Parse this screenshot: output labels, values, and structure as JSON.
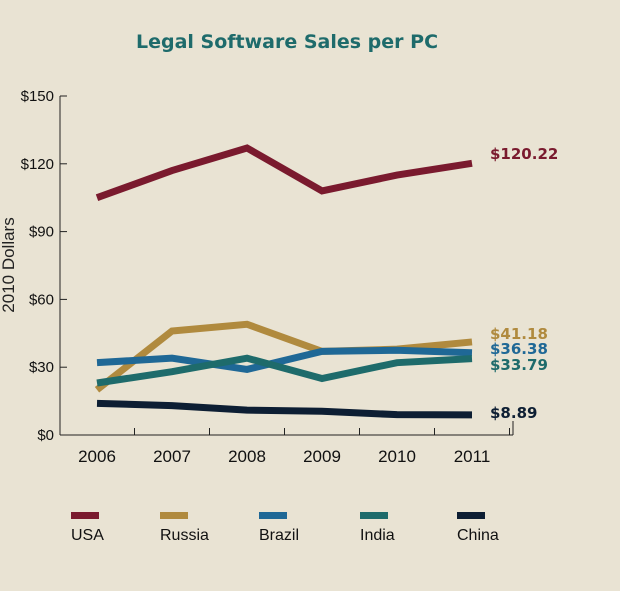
{
  "chart_data": {
    "type": "line",
    "title": "Legal Software Sales per PC",
    "ylabel": "2010 Dollars",
    "xlabel": "",
    "categories": [
      "2006",
      "2007",
      "2008",
      "2009",
      "2010",
      "2011"
    ],
    "ylim": [
      0,
      150
    ],
    "yticks": [
      0,
      30,
      60,
      90,
      120,
      150
    ],
    "ytick_labels": [
      "$0",
      "$30",
      "$60",
      "$90",
      "$120",
      "$150"
    ],
    "legend_position": "bottom",
    "series": [
      {
        "name": "USA",
        "color": "#7a1a2e",
        "values": [
          105,
          117,
          127,
          108,
          115,
          120.22
        ],
        "end_label": "$120.22"
      },
      {
        "name": "Russia",
        "color": "#b08a3e",
        "values": [
          20,
          46,
          49,
          37,
          38,
          41.18
        ],
        "end_label": "$41.18"
      },
      {
        "name": "Brazil",
        "color": "#1f6896",
        "values": [
          32,
          34,
          29,
          37,
          37.5,
          36.38
        ],
        "end_label": "$36.38"
      },
      {
        "name": "India",
        "color": "#1e6b6b",
        "values": [
          23,
          28,
          34,
          25,
          32,
          33.79
        ],
        "end_label": "$33.79"
      },
      {
        "name": "China",
        "color": "#0d1e33",
        "values": [
          14,
          13,
          11,
          10.5,
          9,
          8.89
        ],
        "end_label": "$8.89"
      }
    ]
  }
}
